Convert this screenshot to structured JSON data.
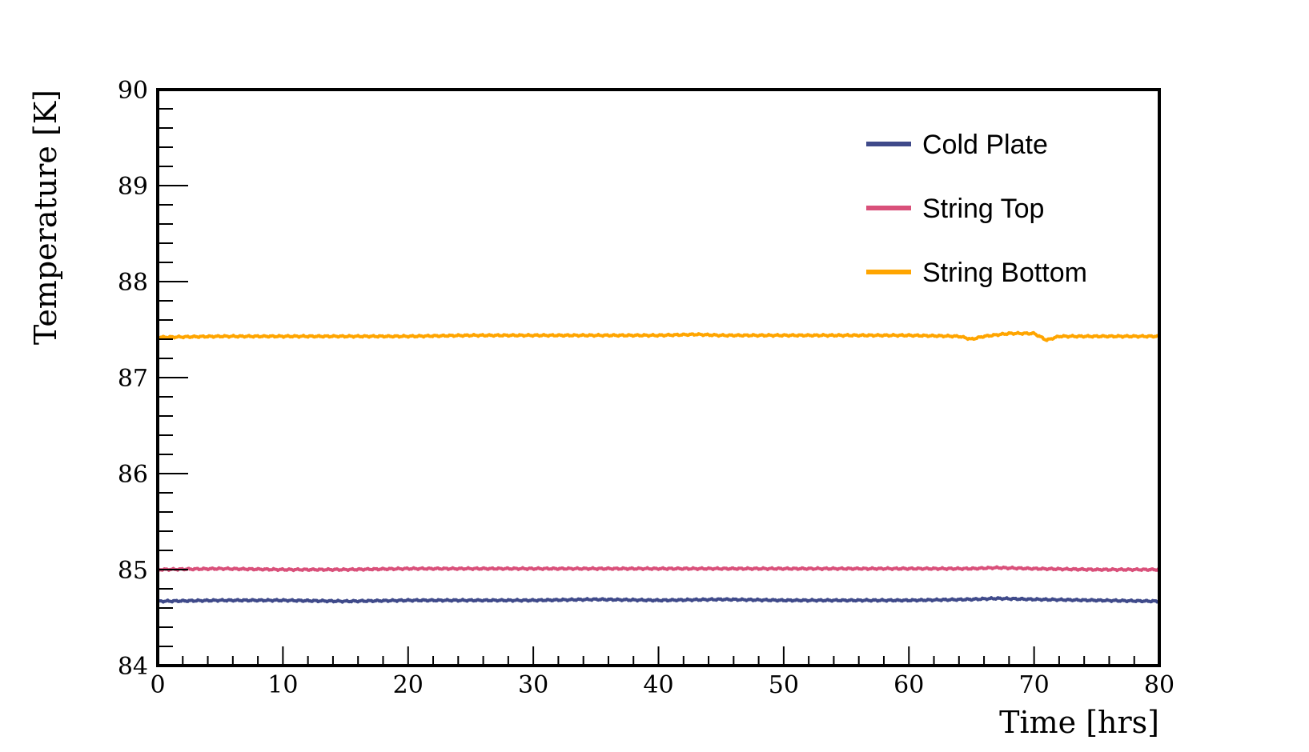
{
  "chart_data": {
    "type": "line",
    "title": "",
    "xlabel": "Time [hrs]",
    "ylabel": "Temperature [K]",
    "xlim": [
      0,
      80
    ],
    "ylim": [
      84,
      90
    ],
    "xticks": [
      "0",
      "10",
      "20",
      "30",
      "40",
      "50",
      "60",
      "70",
      "80"
    ],
    "yticks": [
      "84",
      "85",
      "86",
      "87",
      "88",
      "89",
      "90"
    ],
    "grid": false,
    "legend_position": "top-right",
    "series": [
      {
        "name": "Cold Plate",
        "color": "#3f4a8a",
        "points": [
          [
            0,
            84.67
          ],
          [
            5,
            84.68
          ],
          [
            10,
            84.68
          ],
          [
            15,
            84.67
          ],
          [
            20,
            84.68
          ],
          [
            25,
            84.68
          ],
          [
            30,
            84.68
          ],
          [
            35,
            84.69
          ],
          [
            40,
            84.68
          ],
          [
            45,
            84.69
          ],
          [
            50,
            84.68
          ],
          [
            55,
            84.68
          ],
          [
            60,
            84.68
          ],
          [
            65,
            84.69
          ],
          [
            67,
            84.7
          ],
          [
            70,
            84.69
          ],
          [
            75,
            84.68
          ],
          [
            80,
            84.67
          ]
        ]
      },
      {
        "name": "String Top",
        "color": "#d9507a",
        "points": [
          [
            0,
            85.0
          ],
          [
            5,
            85.01
          ],
          [
            10,
            85.0
          ],
          [
            15,
            85.0
          ],
          [
            20,
            85.01
          ],
          [
            25,
            85.01
          ],
          [
            30,
            85.01
          ],
          [
            35,
            85.01
          ],
          [
            40,
            85.01
          ],
          [
            45,
            85.01
          ],
          [
            50,
            85.01
          ],
          [
            55,
            85.01
          ],
          [
            60,
            85.01
          ],
          [
            65,
            85.01
          ],
          [
            67,
            85.02
          ],
          [
            70,
            85.01
          ],
          [
            75,
            85.0
          ],
          [
            80,
            85.0
          ]
        ]
      },
      {
        "name": "String Bottom",
        "color": "#ffa500",
        "points": [
          [
            0,
            87.42
          ],
          [
            5,
            87.43
          ],
          [
            10,
            87.43
          ],
          [
            15,
            87.43
          ],
          [
            20,
            87.43
          ],
          [
            25,
            87.44
          ],
          [
            30,
            87.44
          ],
          [
            35,
            87.44
          ],
          [
            40,
            87.44
          ],
          [
            43,
            87.45
          ],
          [
            45,
            87.44
          ],
          [
            50,
            87.44
          ],
          [
            55,
            87.44
          ],
          [
            60,
            87.44
          ],
          [
            64,
            87.43
          ],
          [
            65,
            87.4
          ],
          [
            66,
            87.43
          ],
          [
            68,
            87.46
          ],
          [
            70,
            87.46
          ],
          [
            71,
            87.39
          ],
          [
            72,
            87.43
          ],
          [
            75,
            87.43
          ],
          [
            80,
            87.43
          ]
        ]
      }
    ]
  }
}
